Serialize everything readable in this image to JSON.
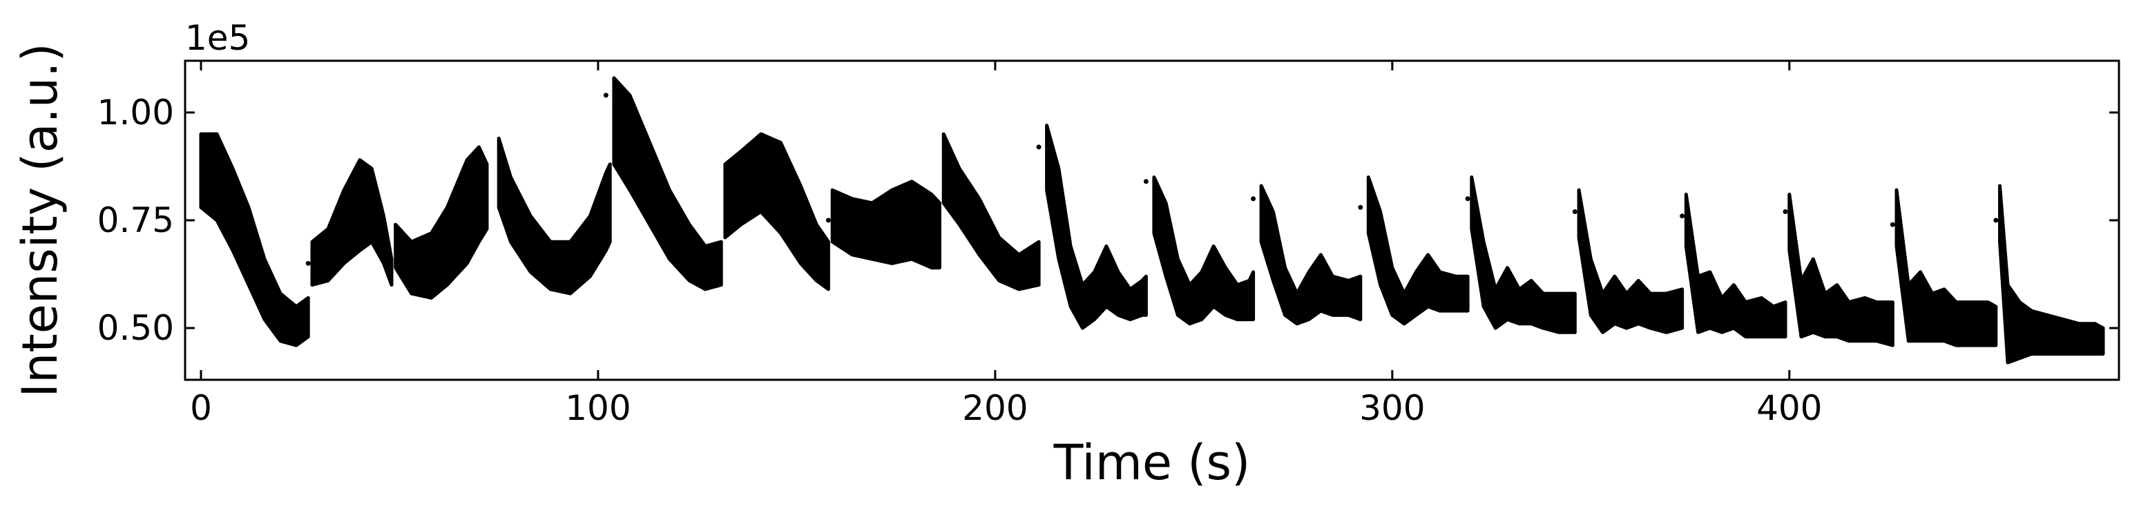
{
  "chart_data": {
    "type": "scatter",
    "title": "",
    "xlabel": "Time (s)",
    "ylabel": "Intensity (a.u.)",
    "y_offset_label": "1e5",
    "y_scale_factor": 100000,
    "xlim": [
      -4,
      483
    ],
    "ylim": [
      0.38,
      1.12
    ],
    "xticks": [
      0,
      100,
      200,
      300,
      400
    ],
    "xtick_labels": [
      "0",
      "100",
      "200",
      "300",
      "400"
    ],
    "yticks": [
      0.5,
      0.75,
      1.0
    ],
    "ytick_labels": [
      "0.50",
      "0.75",
      "1.00"
    ],
    "grid": false,
    "legend": "none",
    "marker_color": "#000000",
    "note_on_values": "Each point is [time_s, intensity_upper, intensity_lower] in units of 1e5 a.u.; the dense data forms a filled band between upper and lower envelopes.",
    "segments": [
      {
        "points": [
          [
            0,
            0.95,
            0.78
          ],
          [
            4,
            0.95,
            0.75
          ],
          [
            8,
            0.87,
            0.68
          ],
          [
            12,
            0.78,
            0.6
          ],
          [
            16,
            0.66,
            0.52
          ],
          [
            20,
            0.58,
            0.47
          ],
          [
            24,
            0.55,
            0.46
          ],
          [
            27,
            0.57,
            0.48
          ]
        ]
      },
      {
        "points": [
          [
            28,
            0.7,
            0.6
          ],
          [
            32,
            0.73,
            0.61
          ],
          [
            36,
            0.82,
            0.65
          ],
          [
            40,
            0.89,
            0.68
          ],
          [
            43,
            0.87,
            0.7
          ],
          [
            46,
            0.76,
            0.65
          ],
          [
            48,
            0.66,
            0.6
          ]
        ]
      },
      {
        "points": [
          [
            49,
            0.74,
            0.64
          ],
          [
            53,
            0.7,
            0.58
          ],
          [
            58,
            0.72,
            0.57
          ],
          [
            62,
            0.78,
            0.6
          ],
          [
            67,
            0.89,
            0.65
          ],
          [
            70,
            0.92,
            0.7
          ],
          [
            72,
            0.88,
            0.73
          ]
        ]
      },
      {
        "points": [
          [
            75,
            0.94,
            0.78
          ],
          [
            78,
            0.85,
            0.7
          ],
          [
            83,
            0.76,
            0.63
          ],
          [
            88,
            0.7,
            0.59
          ],
          [
            93,
            0.7,
            0.58
          ],
          [
            98,
            0.76,
            0.62
          ],
          [
            102,
            0.86,
            0.68
          ],
          [
            103,
            0.88,
            0.7
          ]
        ]
      },
      {
        "points": [
          [
            104,
            1.08,
            0.88
          ],
          [
            108,
            1.04,
            0.82
          ],
          [
            113,
            0.93,
            0.74
          ],
          [
            118,
            0.82,
            0.66
          ],
          [
            123,
            0.74,
            0.61
          ],
          [
            127,
            0.69,
            0.59
          ],
          [
            131,
            0.7,
            0.6
          ]
        ]
      },
      {
        "points": [
          [
            132,
            0.88,
            0.71
          ],
          [
            136,
            0.91,
            0.74
          ],
          [
            141,
            0.95,
            0.77
          ],
          [
            146,
            0.93,
            0.72
          ],
          [
            151,
            0.83,
            0.65
          ],
          [
            155,
            0.74,
            0.61
          ],
          [
            158,
            0.7,
            0.59
          ]
        ]
      },
      {
        "points": [
          [
            159,
            0.82,
            0.7
          ],
          [
            164,
            0.8,
            0.67
          ],
          [
            169,
            0.79,
            0.66
          ],
          [
            174,
            0.82,
            0.65
          ],
          [
            179,
            0.84,
            0.66
          ],
          [
            184,
            0.81,
            0.64
          ],
          [
            186,
            0.79,
            0.64
          ]
        ]
      },
      {
        "points": [
          [
            187,
            0.95,
            0.79
          ],
          [
            191,
            0.87,
            0.74
          ],
          [
            196,
            0.8,
            0.67
          ],
          [
            201,
            0.71,
            0.61
          ],
          [
            206,
            0.67,
            0.59
          ],
          [
            211,
            0.7,
            0.6
          ]
        ]
      },
      {
        "points": [
          [
            213,
            0.97,
            0.82
          ],
          [
            216,
            0.87,
            0.66
          ],
          [
            219,
            0.69,
            0.55
          ],
          [
            222,
            0.6,
            0.5
          ],
          [
            225,
            0.63,
            0.52
          ],
          [
            228,
            0.69,
            0.55
          ],
          [
            231,
            0.63,
            0.53
          ],
          [
            234,
            0.59,
            0.52
          ],
          [
            237,
            0.61,
            0.53
          ],
          [
            238,
            0.62,
            0.53
          ]
        ]
      },
      {
        "points": [
          [
            240,
            0.85,
            0.72
          ],
          [
            243,
            0.79,
            0.62
          ],
          [
            246,
            0.66,
            0.53
          ],
          [
            249,
            0.6,
            0.51
          ],
          [
            252,
            0.63,
            0.52
          ],
          [
            255,
            0.69,
            0.55
          ],
          [
            258,
            0.64,
            0.53
          ],
          [
            261,
            0.6,
            0.52
          ],
          [
            264,
            0.61,
            0.52
          ],
          [
            265,
            0.63,
            0.52
          ]
        ]
      },
      {
        "points": [
          [
            267,
            0.83,
            0.7
          ],
          [
            270,
            0.77,
            0.61
          ],
          [
            273,
            0.64,
            0.53
          ],
          [
            276,
            0.58,
            0.51
          ],
          [
            279,
            0.63,
            0.52
          ],
          [
            282,
            0.67,
            0.54
          ],
          [
            285,
            0.62,
            0.53
          ],
          [
            289,
            0.61,
            0.53
          ],
          [
            292,
            0.62,
            0.52
          ]
        ]
      },
      {
        "points": [
          [
            294,
            0.85,
            0.72
          ],
          [
            297,
            0.77,
            0.6
          ],
          [
            300,
            0.64,
            0.53
          ],
          [
            303,
            0.58,
            0.51
          ],
          [
            306,
            0.63,
            0.53
          ],
          [
            309,
            0.67,
            0.55
          ],
          [
            312,
            0.63,
            0.54
          ],
          [
            316,
            0.62,
            0.54
          ],
          [
            319,
            0.62,
            0.54
          ]
        ]
      },
      {
        "points": [
          [
            320,
            0.85,
            0.73
          ],
          [
            323,
            0.7,
            0.55
          ],
          [
            326,
            0.59,
            0.5
          ],
          [
            329,
            0.64,
            0.52
          ],
          [
            332,
            0.59,
            0.51
          ],
          [
            335,
            0.61,
            0.51
          ],
          [
            338,
            0.58,
            0.5
          ],
          [
            342,
            0.58,
            0.49
          ],
          [
            346,
            0.58,
            0.49
          ]
        ]
      },
      {
        "points": [
          [
            347,
            0.82,
            0.71
          ],
          [
            350,
            0.66,
            0.53
          ],
          [
            353,
            0.58,
            0.49
          ],
          [
            356,
            0.62,
            0.51
          ],
          [
            359,
            0.58,
            0.5
          ],
          [
            362,
            0.61,
            0.51
          ],
          [
            365,
            0.58,
            0.5
          ],
          [
            369,
            0.58,
            0.49
          ],
          [
            373,
            0.59,
            0.5
          ]
        ]
      },
      {
        "points": [
          [
            374,
            0.81,
            0.69
          ],
          [
            377,
            0.62,
            0.49
          ],
          [
            380,
            0.63,
            0.5
          ],
          [
            383,
            0.57,
            0.49
          ],
          [
            386,
            0.6,
            0.5
          ],
          [
            389,
            0.56,
            0.48
          ],
          [
            393,
            0.57,
            0.48
          ],
          [
            396,
            0.55,
            0.48
          ],
          [
            399,
            0.56,
            0.48
          ]
        ]
      },
      {
        "points": [
          [
            400,
            0.81,
            0.68
          ],
          [
            403,
            0.61,
            0.48
          ],
          [
            406,
            0.66,
            0.49
          ],
          [
            409,
            0.58,
            0.48
          ],
          [
            412,
            0.6,
            0.48
          ],
          [
            415,
            0.56,
            0.47
          ],
          [
            419,
            0.57,
            0.47
          ],
          [
            422,
            0.56,
            0.47
          ],
          [
            426,
            0.56,
            0.46
          ]
        ]
      },
      {
        "points": [
          [
            427,
            0.82,
            0.69
          ],
          [
            430,
            0.6,
            0.47
          ],
          [
            433,
            0.63,
            0.47
          ],
          [
            436,
            0.58,
            0.47
          ],
          [
            439,
            0.59,
            0.47
          ],
          [
            442,
            0.56,
            0.46
          ],
          [
            446,
            0.56,
            0.46
          ],
          [
            450,
            0.56,
            0.46
          ],
          [
            452,
            0.55,
            0.46
          ]
        ]
      },
      {
        "points": [
          [
            453,
            0.83,
            0.7
          ],
          [
            455,
            0.6,
            0.42
          ],
          [
            458,
            0.56,
            0.43
          ],
          [
            461,
            0.54,
            0.44
          ],
          [
            465,
            0.53,
            0.44
          ],
          [
            469,
            0.52,
            0.44
          ],
          [
            473,
            0.51,
            0.44
          ],
          [
            477,
            0.51,
            0.44
          ],
          [
            479,
            0.5,
            0.44
          ]
        ]
      }
    ],
    "isolated_points": [
      [
        27,
        0.65
      ],
      [
        102,
        1.04
      ],
      [
        158,
        0.75
      ],
      [
        211,
        0.92
      ],
      [
        238,
        0.84
      ],
      [
        265,
        0.8
      ],
      [
        292,
        0.78
      ],
      [
        319,
        0.8
      ],
      [
        346,
        0.77
      ],
      [
        373,
        0.76
      ],
      [
        399,
        0.77
      ],
      [
        426,
        0.74
      ],
      [
        452,
        0.75
      ]
    ]
  }
}
